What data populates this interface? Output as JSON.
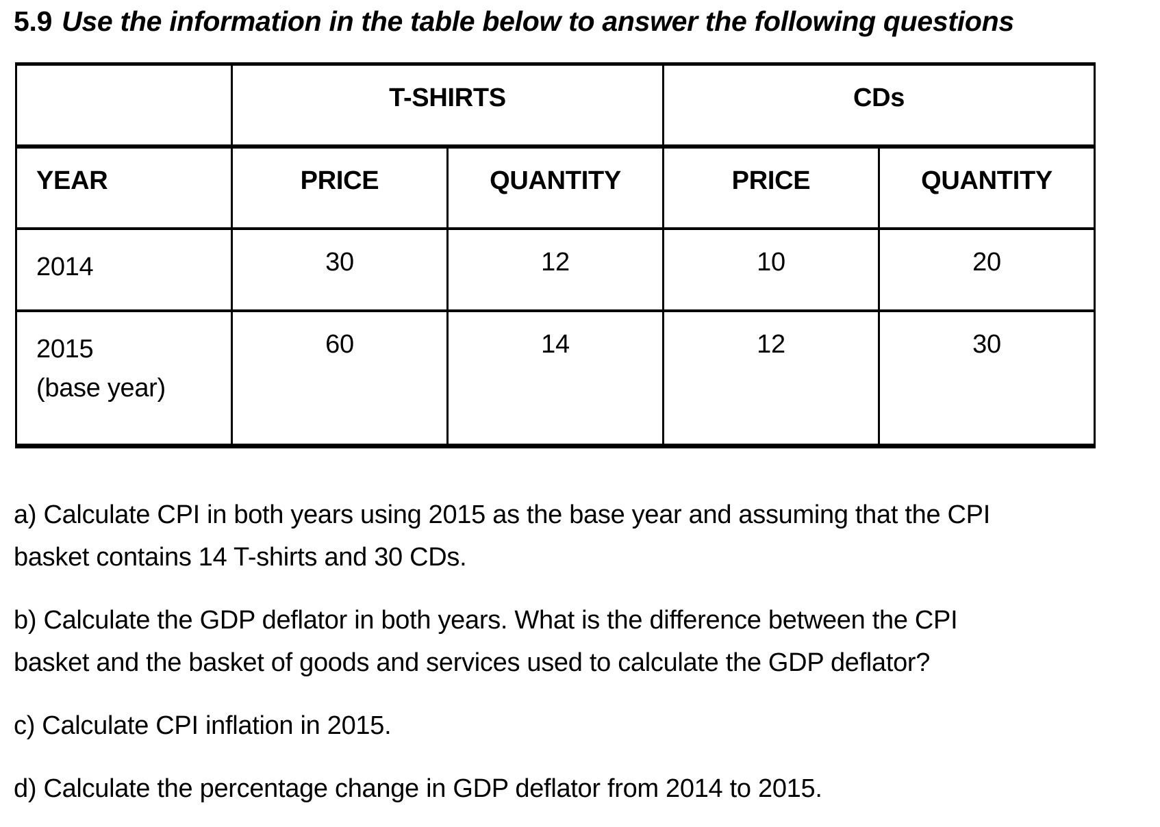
{
  "heading": {
    "number": "5.9",
    "instruction": "Use the information in the table below to answer the following questions"
  },
  "table": {
    "groups": [
      "T-SHIRTS",
      "CDs"
    ],
    "columns": [
      "YEAR",
      "PRICE",
      "QUANTITY",
      "PRICE",
      "QUANTITY"
    ],
    "rows": [
      {
        "year": "2014",
        "year_note": "",
        "tshirt_price": "30",
        "tshirt_quantity": "12",
        "cd_price": "10",
        "cd_quantity": "20"
      },
      {
        "year": "2015",
        "year_note": "(base year)",
        "tshirt_price": "60",
        "tshirt_quantity": "14",
        "cd_price": "12",
        "cd_quantity": "30"
      }
    ]
  },
  "questions": [
    {
      "text": "a) Calculate CPI in both years using 2015 as the base year and assuming that the CPI\nbasket contains 14 T-shirts and 30 CDs."
    },
    {
      "text": "b) Calculate the GDP deflator in both years. What is the difference between the CPI\nbasket and the basket of goods and services used to calculate the GDP deflator?"
    },
    {
      "text": "c) Calculate CPI inflation in 2015."
    },
    {
      "text": "d) Calculate the percentage change in GDP deflator from 2014 to 2015."
    }
  ]
}
